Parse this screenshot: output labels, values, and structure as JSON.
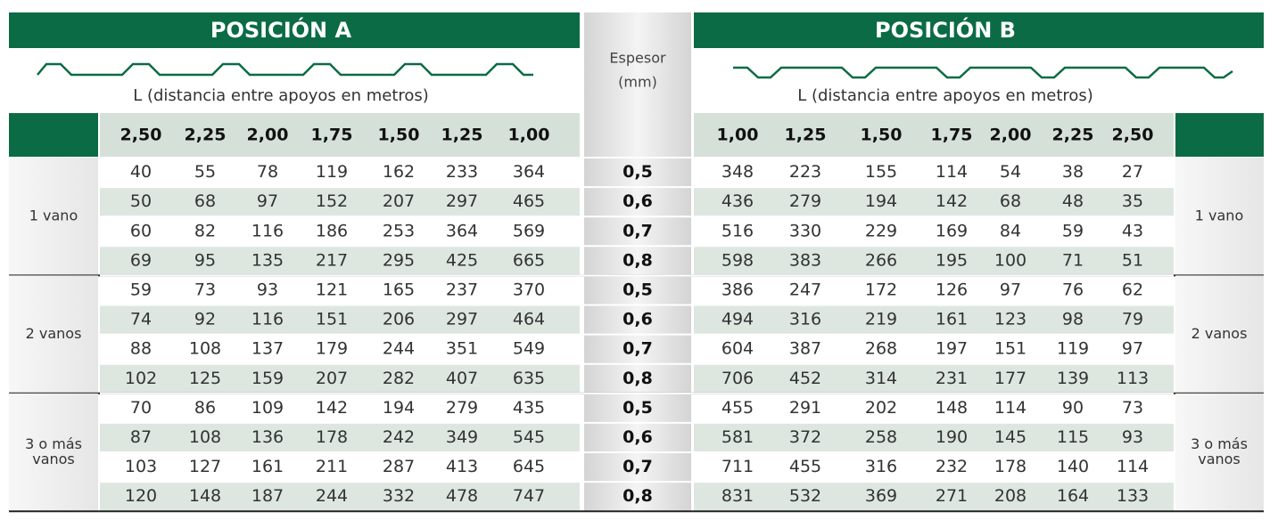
{
  "position_a": {
    "title": "POSICIÓN A",
    "caption": "L (distancia entre apoyos en metros)",
    "spans": [
      "2,50",
      "2,25",
      "2,00",
      "1,75",
      "1,50",
      "1,25",
      "1,00"
    ]
  },
  "position_b": {
    "title": "POSICIÓN B",
    "caption": "L (distancia entre apoyos en metros)",
    "spans": [
      "1,00",
      "1,25",
      "1,50",
      "1,75",
      "2,00",
      "2,25",
      "2,50"
    ]
  },
  "thickness_header": [
    "Espesor",
    "(mm)"
  ],
  "groups": [
    {
      "label": [
        "1 vano"
      ],
      "rows": [
        {
          "thickness": "0,5",
          "a": [
            40,
            55,
            78,
            119,
            162,
            233,
            364
          ],
          "b": [
            348,
            223,
            155,
            114,
            54,
            38,
            27
          ]
        },
        {
          "thickness": "0,6",
          "a": [
            50,
            68,
            97,
            152,
            207,
            297,
            465
          ],
          "b": [
            436,
            279,
            194,
            142,
            68,
            48,
            35
          ]
        },
        {
          "thickness": "0,7",
          "a": [
            60,
            82,
            116,
            186,
            253,
            364,
            569
          ],
          "b": [
            516,
            330,
            229,
            169,
            84,
            59,
            43
          ]
        },
        {
          "thickness": "0,8",
          "a": [
            69,
            95,
            135,
            217,
            295,
            425,
            665
          ],
          "b": [
            598,
            383,
            266,
            195,
            100,
            71,
            51
          ]
        }
      ]
    },
    {
      "label": [
        "2 vanos"
      ],
      "rows": [
        {
          "thickness": "0,5",
          "a": [
            59,
            73,
            93,
            121,
            165,
            237,
            370
          ],
          "b": [
            386,
            247,
            172,
            126,
            97,
            76,
            62
          ]
        },
        {
          "thickness": "0,6",
          "a": [
            74,
            92,
            116,
            151,
            206,
            297,
            464
          ],
          "b": [
            494,
            316,
            219,
            161,
            123,
            98,
            79
          ]
        },
        {
          "thickness": "0,7",
          "a": [
            88,
            108,
            137,
            179,
            244,
            351,
            549
          ],
          "b": [
            604,
            387,
            268,
            197,
            151,
            119,
            97
          ]
        },
        {
          "thickness": "0,8",
          "a": [
            102,
            125,
            159,
            207,
            282,
            407,
            635
          ],
          "b": [
            706,
            452,
            314,
            231,
            177,
            139,
            113
          ]
        }
      ]
    },
    {
      "label": [
        "3 o más",
        "vanos"
      ],
      "rows": [
        {
          "thickness": "0,5",
          "a": [
            70,
            86,
            109,
            142,
            194,
            279,
            435
          ],
          "b": [
            455,
            291,
            202,
            148,
            114,
            90,
            73
          ]
        },
        {
          "thickness": "0,6",
          "a": [
            87,
            108,
            136,
            178,
            242,
            349,
            545
          ],
          "b": [
            581,
            372,
            258,
            190,
            145,
            115,
            93
          ]
        },
        {
          "thickness": "0,7",
          "a": [
            103,
            127,
            161,
            211,
            287,
            413,
            645
          ],
          "b": [
            711,
            455,
            316,
            232,
            178,
            140,
            114
          ]
        },
        {
          "thickness": "0,8",
          "a": [
            120,
            148,
            187,
            244,
            332,
            478,
            747
          ],
          "b": [
            831,
            532,
            369,
            271,
            208,
            164,
            133
          ]
        }
      ]
    }
  ]
}
